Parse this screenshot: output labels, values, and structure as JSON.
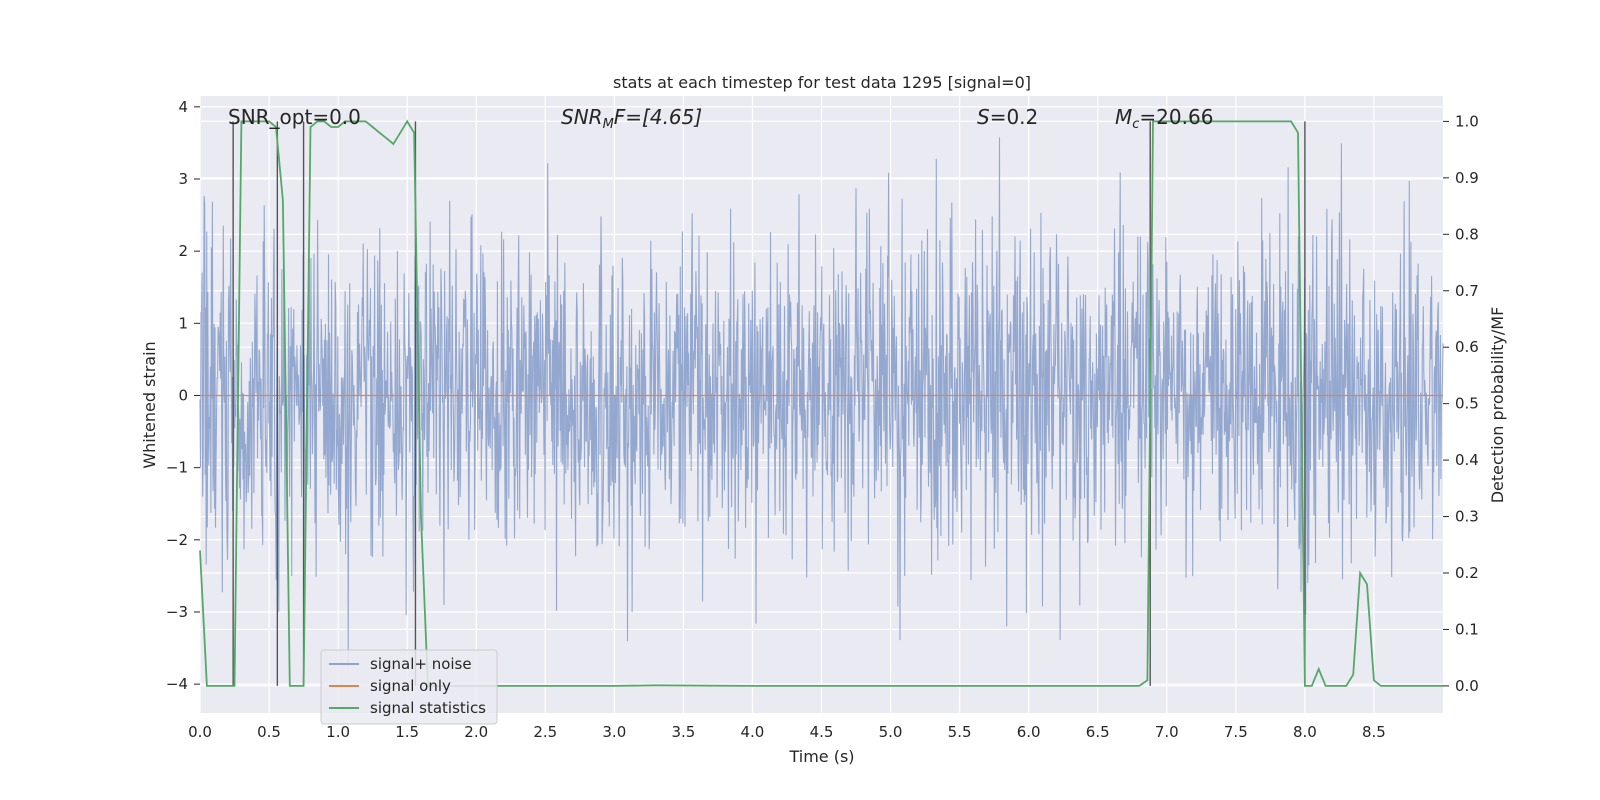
{
  "chart_data": {
    "type": "line",
    "title": "stats at each timestep for test data 1295 [signal=0]",
    "xlabel": "Time (s)",
    "ylabel_left": "Whitened strain",
    "ylabel_right": "Detection probability/MF",
    "xlim": [
      0.0,
      9.0
    ],
    "ylim_left": [
      -4.4,
      4.15
    ],
    "ylim_right": [
      -0.048,
      1.045
    ],
    "xticks": [
      "0.0",
      "0.5",
      "1.0",
      "1.5",
      "2.0",
      "2.5",
      "3.0",
      "3.5",
      "4.0",
      "4.5",
      "5.0",
      "5.5",
      "6.0",
      "6.5",
      "7.0",
      "7.5",
      "8.0",
      "8.5"
    ],
    "yticks_left": [
      "4",
      "3",
      "2",
      "1",
      "0",
      "−1",
      "−2",
      "−3",
      "−4"
    ],
    "yticks_right": [
      "1.0",
      "0.9",
      "0.8",
      "0.7",
      "0.6",
      "0.5",
      "0.4",
      "0.3",
      "0.2",
      "0.1",
      "0.0"
    ],
    "grid": true,
    "legend_position": "lower-left",
    "annotations": {
      "snr_opt": "SNR_opt=0.0",
      "snr_mf_main": "SNR",
      "snr_mf_sub": "M",
      "snr_mf_tail": "F=[4.65]",
      "s_main": "S",
      "s_tail": "=0.2",
      "mc_main": "M",
      "mc_sub": "c",
      "mc_tail": "=20.66"
    },
    "series": [
      {
        "name": "signal+ noise",
        "color": "#8fa4cc",
        "description_of_values": "whitened noise, roughly Gaussian, amplitude about ±2 with spikes to ±3.8, sampled over 0–9 s",
        "amplitude_typical": 1.1,
        "amplitude_max": 3.8
      },
      {
        "name": "signal only",
        "color": "#dd8452",
        "x": [
          0.0,
          9.0
        ],
        "y": [
          0.0,
          0.0
        ]
      },
      {
        "name": "signal statistics",
        "color": "#55a868",
        "x": [
          0.0,
          0.05,
          0.1,
          0.15,
          0.2,
          0.25,
          0.3,
          0.35,
          0.4,
          0.45,
          0.5,
          0.55,
          0.6,
          0.65,
          0.7,
          0.75,
          0.8,
          0.85,
          0.9,
          0.95,
          1.0,
          1.05,
          1.1,
          1.15,
          1.2,
          1.25,
          1.3,
          1.35,
          1.4,
          1.45,
          1.5,
          1.55,
          1.6,
          1.65,
          1.7,
          2.0,
          3.0,
          3.3,
          4.0,
          5.0,
          6.0,
          6.8,
          6.86,
          6.88,
          6.9,
          6.95,
          7.0,
          7.5,
          7.9,
          7.95,
          8.0,
          8.05,
          8.1,
          8.15,
          8.3,
          8.35,
          8.4,
          8.45,
          8.5,
          8.55,
          8.6,
          8.7,
          9.0
        ],
        "y": [
          0.24,
          0.0,
          0.0,
          0.0,
          0.0,
          0.0,
          1.0,
          1.0,
          1.0,
          1.0,
          1.0,
          0.99,
          0.86,
          0.0,
          0.0,
          0.0,
          0.99,
          1.0,
          1.0,
          0.99,
          0.99,
          1.0,
          1.0,
          1.0,
          1.0,
          0.99,
          0.98,
          0.97,
          0.96,
          0.98,
          1.0,
          0.98,
          0.3,
          0.0,
          0.0,
          0.0,
          0.0,
          0.001,
          0.0,
          0.0,
          0.0,
          0.0,
          0.01,
          0.5,
          1.0,
          1.0,
          1.0,
          1.0,
          1.0,
          0.98,
          0.0,
          0.0,
          0.03,
          0.0,
          0.0,
          0.02,
          0.2,
          0.18,
          0.01,
          0.0,
          0.0,
          0.0,
          0.0
        ]
      }
    ],
    "vertical_markers_x": [
      0.24,
      0.56,
      0.75,
      1.56,
      6.88,
      8.0
    ]
  }
}
